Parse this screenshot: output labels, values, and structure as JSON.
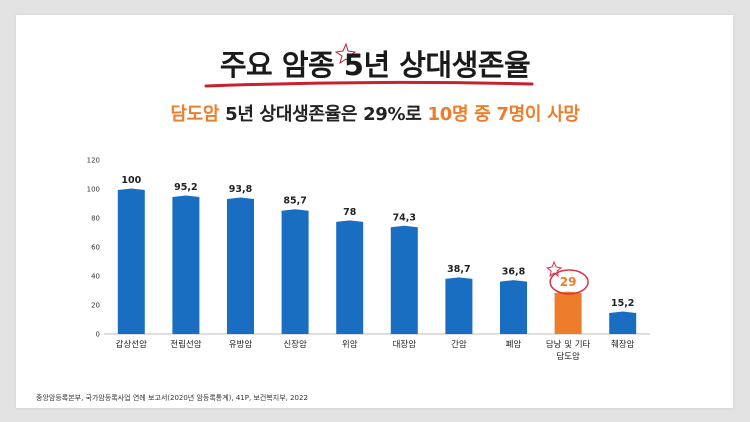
{
  "header": {
    "title": "주요 암종 5년 상대생존율",
    "subtitle_accent1": "담도암",
    "subtitle_mid": " 5년 상대생존율은 29%로 ",
    "subtitle_accent2": "10명 중 7명이 사망"
  },
  "footer": {
    "source": "중앙암등록본부, 국가암등록사업 연례 보고서(2020년 암등록통계), 41P, 보건복지부, 2022"
  },
  "colors": {
    "bar": "#1a6ec1",
    "highlight": "#ee7d2b",
    "circle": "#d9334a",
    "underline": "#c8202f"
  },
  "chart_data": {
    "type": "bar",
    "title": "주요 암종 5년 상대생존율",
    "xlabel": "",
    "ylabel": "",
    "ylim": [
      0,
      120
    ],
    "yticks": [
      0,
      20,
      40,
      60,
      80,
      100,
      120
    ],
    "grid": false,
    "categories": [
      "갑상선암",
      "전립선암",
      "유방암",
      "신장암",
      "위암",
      "대장암",
      "간암",
      "폐암",
      "담낭 및 기타\n담도암",
      "췌장암"
    ],
    "values": [
      100,
      95.2,
      93.8,
      85.7,
      78,
      74.3,
      38.7,
      36.8,
      29,
      15.2
    ],
    "value_labels": [
      "100",
      "95,2",
      "93,8",
      "85,7",
      "78",
      "74,3",
      "38,7",
      "36,8",
      "29",
      "15,2"
    ],
    "highlight_index": 8
  }
}
